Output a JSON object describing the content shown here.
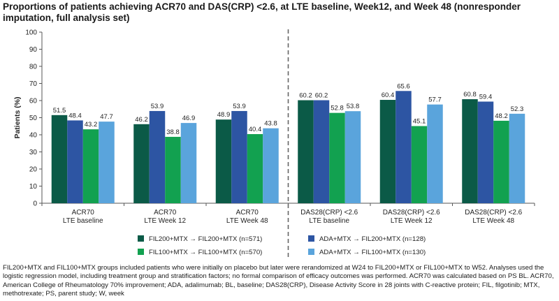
{
  "title": "Proportions of patients achieving ACR70 and DAS(CRP) <2.6, at LTE baseline, Week12, and Week 48 (nonresponder imputation, full analysis set)",
  "footnote": "FIL200+MTX and FIL100+MTX groups included patients who were initially on placebo but later were rerandomized at W24 to FIL200+MTX or FIL100+MTX to W52. Analyses used the logistic regression model, including treatment group and stratification factors; no formal comparison of efficacy outcomes was performed. ACR70 was calculated based on PS BL. ACR70, American College of Rheumatology 70% improvement; ADA, adalimumab; BL, baseline; DAS28(CRP), Disease Activity Score in 28 joints with C-reactive protein; FIL, filgotinib; MTX, methotrexate; PS, parent study; W, week",
  "chart_data": {
    "type": "bar",
    "ylabel": "Patients (%)",
    "ylim": [
      0,
      100
    ],
    "yticks": [
      "0",
      "10",
      "20",
      "30",
      "40",
      "50",
      "60",
      "70",
      "80",
      "90",
      "100"
    ],
    "grid": false,
    "legend_position": "bottom",
    "categories": [
      [
        "ACR70",
        "LTE baseline"
      ],
      [
        "ACR70",
        "LTE Week 12"
      ],
      [
        "ACR70",
        "LTE Week 48"
      ],
      [
        "DAS28(CRP) <2.6",
        "LTE baseline"
      ],
      [
        "DAS28(CRP) <2.6",
        "LTE Week 12"
      ],
      [
        "DAS28(CRP) <2.6",
        "LTE Week 48"
      ]
    ],
    "series": [
      {
        "name": "FIL200+MTX → FIL200+MTX (n=571)",
        "color": "#0b5a47",
        "values": [
          51.5,
          46.2,
          48.9,
          60.2,
          60.4,
          60.8
        ],
        "labels": [
          "51.5",
          "46.2",
          "48.9",
          "60.2",
          "60.4",
          "60.8"
        ]
      },
      {
        "name": "ADA+MTX → FIL200+MTX (n=128)",
        "color": "#2d55a3",
        "values": [
          48.4,
          53.9,
          53.9,
          60.2,
          65.6,
          59.4
        ],
        "labels": [
          "48.4",
          "53.9",
          "53.9",
          "60.2",
          "65.6",
          "59.4"
        ]
      },
      {
        "name": "FIL100+MTX → FIL100+MTX (n=570)",
        "color": "#12a150",
        "values": [
          43.2,
          38.8,
          40.4,
          52.8,
          45.1,
          48.2
        ],
        "labels": [
          "43.2",
          "38.8",
          "40.4",
          "52.8",
          "45.1",
          "48.2"
        ]
      },
      {
        "name": "ADA+MTX → FIL100+MTX (n=130)",
        "color": "#5aa4dc",
        "values": [
          47.7,
          46.9,
          43.8,
          53.8,
          57.7,
          52.3
        ],
        "labels": [
          "47.7",
          "46.9",
          "43.8",
          "53.8",
          "57.7",
          "52.3"
        ]
      }
    ],
    "divider_after_category": 3
  }
}
